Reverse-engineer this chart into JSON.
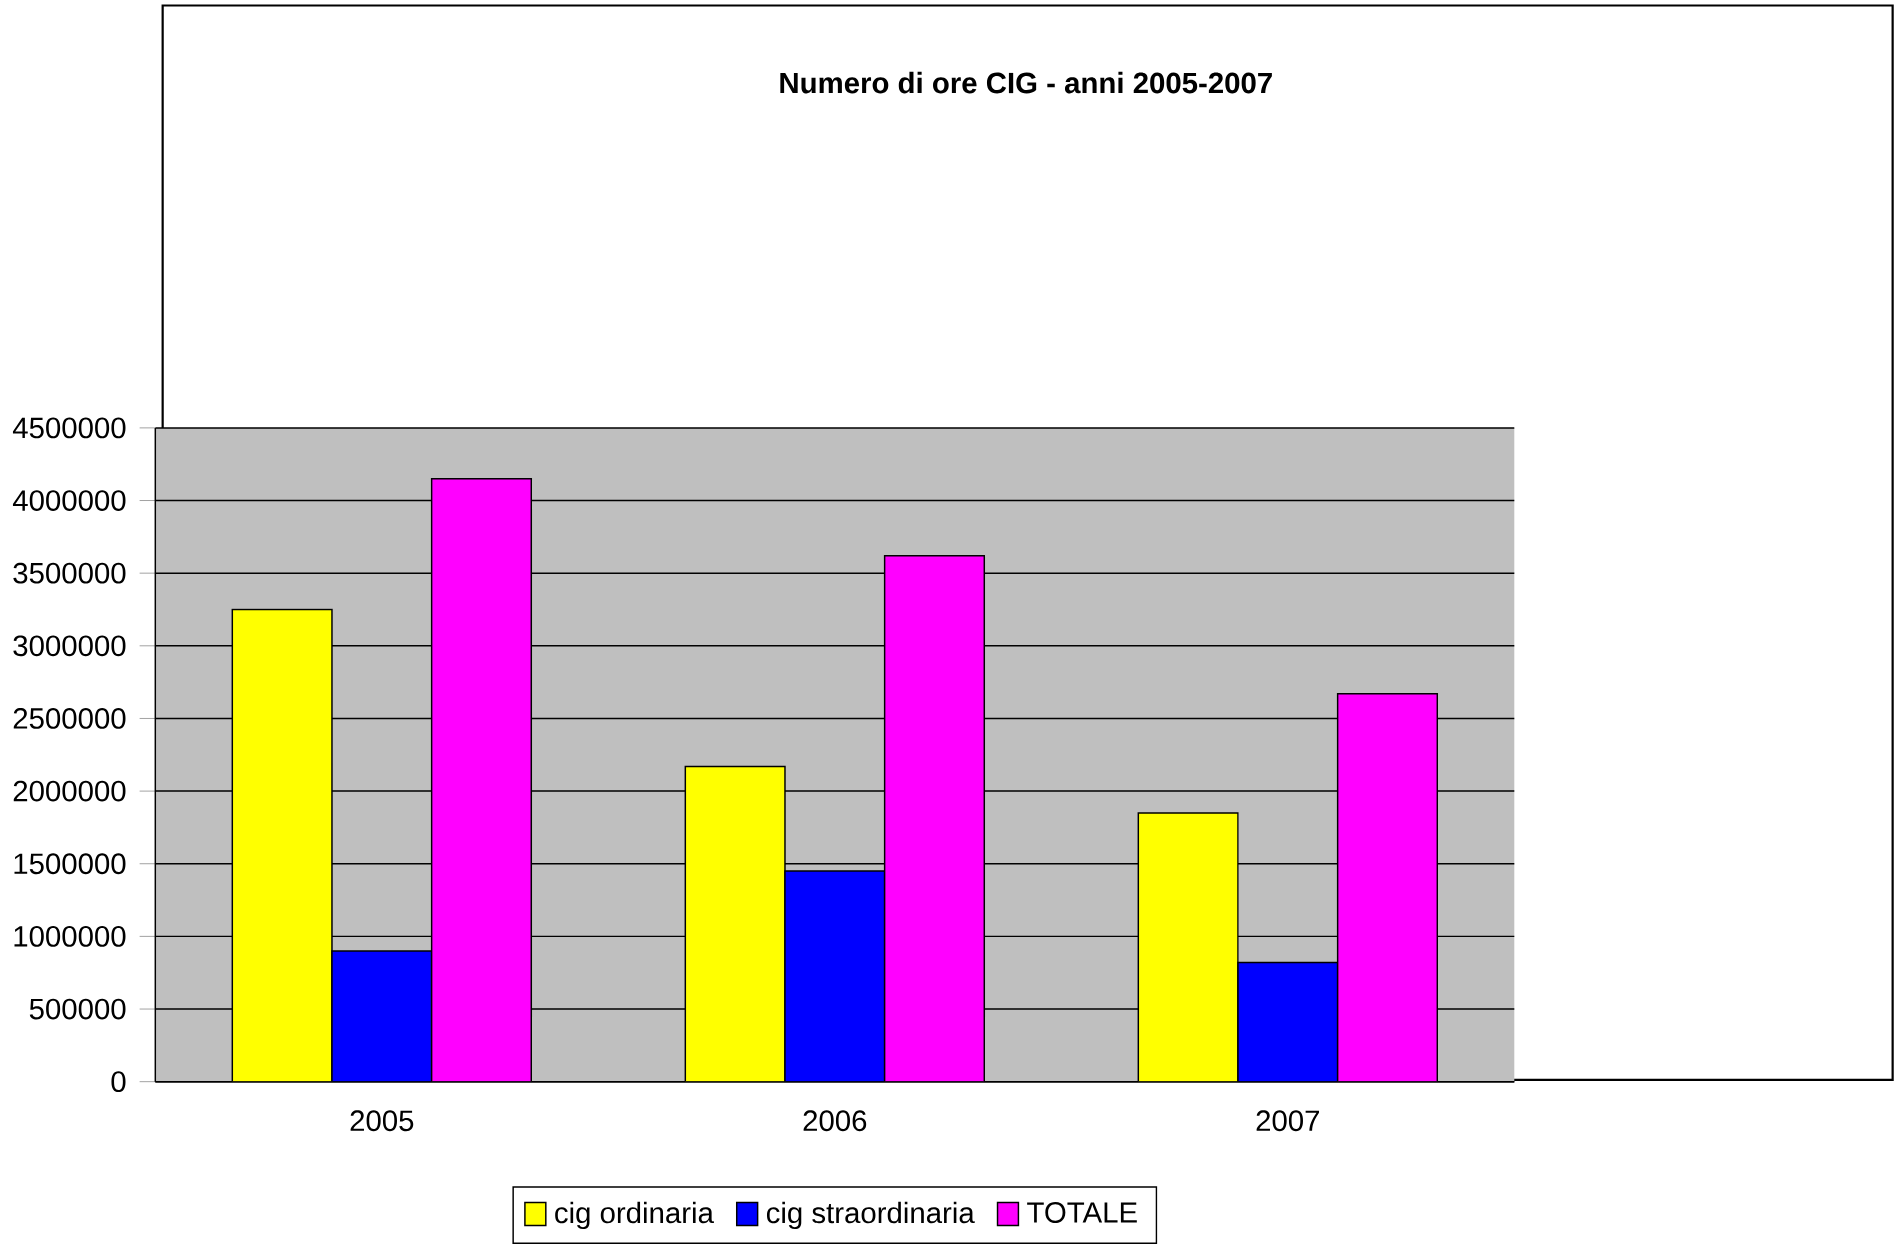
{
  "chart_data": {
    "type": "bar",
    "title": "Numero di ore CIG - anni 2005-2007",
    "categories": [
      "2005",
      "2006",
      "2007"
    ],
    "series": [
      {
        "name": "cig ordinaria",
        "color": "#ffff00",
        "values": [
          3250000,
          2170000,
          1850000
        ]
      },
      {
        "name": "cig straordinaria",
        "color": "#0000ff",
        "values": [
          900000,
          1450000,
          820000
        ]
      },
      {
        "name": "TOTALE",
        "color": "#ff00ff",
        "values": [
          4150000,
          3620000,
          2670000
        ]
      }
    ],
    "ylim": [
      0,
      4500000
    ],
    "yticks": [
      0,
      500000,
      1000000,
      1500000,
      2000000,
      2500000,
      3000000,
      3500000,
      4000000,
      4500000
    ],
    "grid": "y",
    "legend": "bottom"
  }
}
